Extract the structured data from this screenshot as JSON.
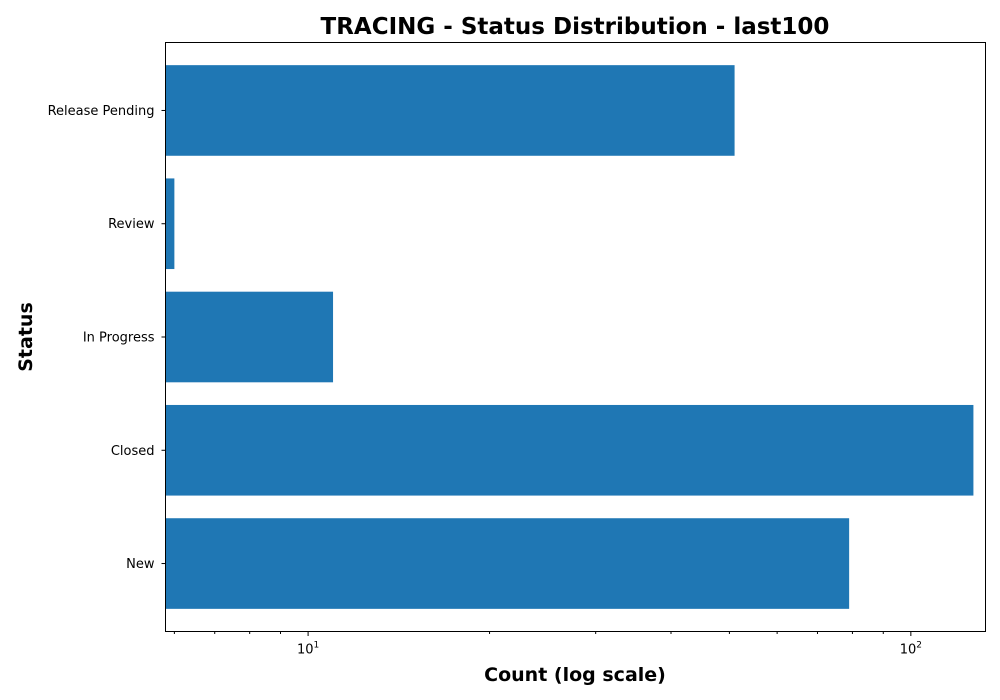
{
  "chart_data": {
    "type": "bar",
    "orientation": "horizontal",
    "title": "TRACING - Status Distribution - last100",
    "xlabel": "Count (log scale)",
    "ylabel": "Status",
    "xscale": "log",
    "xlim": [
      5.8,
      133
    ],
    "categories": [
      "New",
      "Closed",
      "In Progress",
      "Review",
      "Release Pending"
    ],
    "values": [
      79,
      127,
      11,
      6,
      51
    ],
    "x_major_ticks": [
      {
        "value": 10,
        "base": "10",
        "exp": "1"
      },
      {
        "value": 100,
        "base": "10",
        "exp": "2"
      }
    ],
    "x_minor_ticks": [
      6,
      7,
      8,
      9,
      20,
      30,
      40,
      50,
      60,
      70,
      80,
      90
    ],
    "bar_color": "#1f77b4",
    "grid": false,
    "legend": "none"
  }
}
